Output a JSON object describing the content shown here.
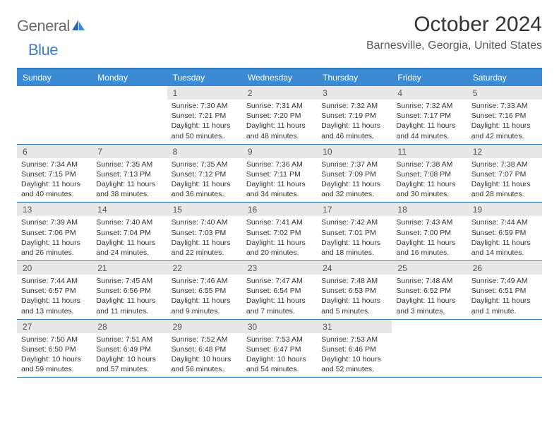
{
  "logo": {
    "text1": "General",
    "text2": "Blue"
  },
  "title": "October 2024",
  "location": "Barnesville, Georgia, United States",
  "colors": {
    "header_bg": "#3b8bd4",
    "header_border": "#2e7abf",
    "daynum_bg": "#e8e8e8",
    "text": "#333333",
    "logo_gray": "#6a6a6a",
    "logo_blue": "#3b7fc4"
  },
  "day_names": [
    "Sunday",
    "Monday",
    "Tuesday",
    "Wednesday",
    "Thursday",
    "Friday",
    "Saturday"
  ],
  "weeks": [
    [
      {
        "blank": true
      },
      {
        "blank": true
      },
      {
        "n": "1",
        "sr": "Sunrise: 7:30 AM",
        "ss": "Sunset: 7:21 PM",
        "dl": "Daylight: 11 hours and 50 minutes."
      },
      {
        "n": "2",
        "sr": "Sunrise: 7:31 AM",
        "ss": "Sunset: 7:20 PM",
        "dl": "Daylight: 11 hours and 48 minutes."
      },
      {
        "n": "3",
        "sr": "Sunrise: 7:32 AM",
        "ss": "Sunset: 7:19 PM",
        "dl": "Daylight: 11 hours and 46 minutes."
      },
      {
        "n": "4",
        "sr": "Sunrise: 7:32 AM",
        "ss": "Sunset: 7:17 PM",
        "dl": "Daylight: 11 hours and 44 minutes."
      },
      {
        "n": "5",
        "sr": "Sunrise: 7:33 AM",
        "ss": "Sunset: 7:16 PM",
        "dl": "Daylight: 11 hours and 42 minutes."
      }
    ],
    [
      {
        "n": "6",
        "sr": "Sunrise: 7:34 AM",
        "ss": "Sunset: 7:15 PM",
        "dl": "Daylight: 11 hours and 40 minutes."
      },
      {
        "n": "7",
        "sr": "Sunrise: 7:35 AM",
        "ss": "Sunset: 7:13 PM",
        "dl": "Daylight: 11 hours and 38 minutes."
      },
      {
        "n": "8",
        "sr": "Sunrise: 7:35 AM",
        "ss": "Sunset: 7:12 PM",
        "dl": "Daylight: 11 hours and 36 minutes."
      },
      {
        "n": "9",
        "sr": "Sunrise: 7:36 AM",
        "ss": "Sunset: 7:11 PM",
        "dl": "Daylight: 11 hours and 34 minutes."
      },
      {
        "n": "10",
        "sr": "Sunrise: 7:37 AM",
        "ss": "Sunset: 7:09 PM",
        "dl": "Daylight: 11 hours and 32 minutes."
      },
      {
        "n": "11",
        "sr": "Sunrise: 7:38 AM",
        "ss": "Sunset: 7:08 PM",
        "dl": "Daylight: 11 hours and 30 minutes."
      },
      {
        "n": "12",
        "sr": "Sunrise: 7:38 AM",
        "ss": "Sunset: 7:07 PM",
        "dl": "Daylight: 11 hours and 28 minutes."
      }
    ],
    [
      {
        "n": "13",
        "sr": "Sunrise: 7:39 AM",
        "ss": "Sunset: 7:06 PM",
        "dl": "Daylight: 11 hours and 26 minutes."
      },
      {
        "n": "14",
        "sr": "Sunrise: 7:40 AM",
        "ss": "Sunset: 7:04 PM",
        "dl": "Daylight: 11 hours and 24 minutes."
      },
      {
        "n": "15",
        "sr": "Sunrise: 7:40 AM",
        "ss": "Sunset: 7:03 PM",
        "dl": "Daylight: 11 hours and 22 minutes."
      },
      {
        "n": "16",
        "sr": "Sunrise: 7:41 AM",
        "ss": "Sunset: 7:02 PM",
        "dl": "Daylight: 11 hours and 20 minutes."
      },
      {
        "n": "17",
        "sr": "Sunrise: 7:42 AM",
        "ss": "Sunset: 7:01 PM",
        "dl": "Daylight: 11 hours and 18 minutes."
      },
      {
        "n": "18",
        "sr": "Sunrise: 7:43 AM",
        "ss": "Sunset: 7:00 PM",
        "dl": "Daylight: 11 hours and 16 minutes."
      },
      {
        "n": "19",
        "sr": "Sunrise: 7:44 AM",
        "ss": "Sunset: 6:59 PM",
        "dl": "Daylight: 11 hours and 14 minutes."
      }
    ],
    [
      {
        "n": "20",
        "sr": "Sunrise: 7:44 AM",
        "ss": "Sunset: 6:57 PM",
        "dl": "Daylight: 11 hours and 13 minutes."
      },
      {
        "n": "21",
        "sr": "Sunrise: 7:45 AM",
        "ss": "Sunset: 6:56 PM",
        "dl": "Daylight: 11 hours and 11 minutes."
      },
      {
        "n": "22",
        "sr": "Sunrise: 7:46 AM",
        "ss": "Sunset: 6:55 PM",
        "dl": "Daylight: 11 hours and 9 minutes."
      },
      {
        "n": "23",
        "sr": "Sunrise: 7:47 AM",
        "ss": "Sunset: 6:54 PM",
        "dl": "Daylight: 11 hours and 7 minutes."
      },
      {
        "n": "24",
        "sr": "Sunrise: 7:48 AM",
        "ss": "Sunset: 6:53 PM",
        "dl": "Daylight: 11 hours and 5 minutes."
      },
      {
        "n": "25",
        "sr": "Sunrise: 7:48 AM",
        "ss": "Sunset: 6:52 PM",
        "dl": "Daylight: 11 hours and 3 minutes."
      },
      {
        "n": "26",
        "sr": "Sunrise: 7:49 AM",
        "ss": "Sunset: 6:51 PM",
        "dl": "Daylight: 11 hours and 1 minute."
      }
    ],
    [
      {
        "n": "27",
        "sr": "Sunrise: 7:50 AM",
        "ss": "Sunset: 6:50 PM",
        "dl": "Daylight: 10 hours and 59 minutes."
      },
      {
        "n": "28",
        "sr": "Sunrise: 7:51 AM",
        "ss": "Sunset: 6:49 PM",
        "dl": "Daylight: 10 hours and 57 minutes."
      },
      {
        "n": "29",
        "sr": "Sunrise: 7:52 AM",
        "ss": "Sunset: 6:48 PM",
        "dl": "Daylight: 10 hours and 56 minutes."
      },
      {
        "n": "30",
        "sr": "Sunrise: 7:53 AM",
        "ss": "Sunset: 6:47 PM",
        "dl": "Daylight: 10 hours and 54 minutes."
      },
      {
        "n": "31",
        "sr": "Sunrise: 7:53 AM",
        "ss": "Sunset: 6:46 PM",
        "dl": "Daylight: 10 hours and 52 minutes."
      },
      {
        "blank": true
      },
      {
        "blank": true
      }
    ]
  ]
}
